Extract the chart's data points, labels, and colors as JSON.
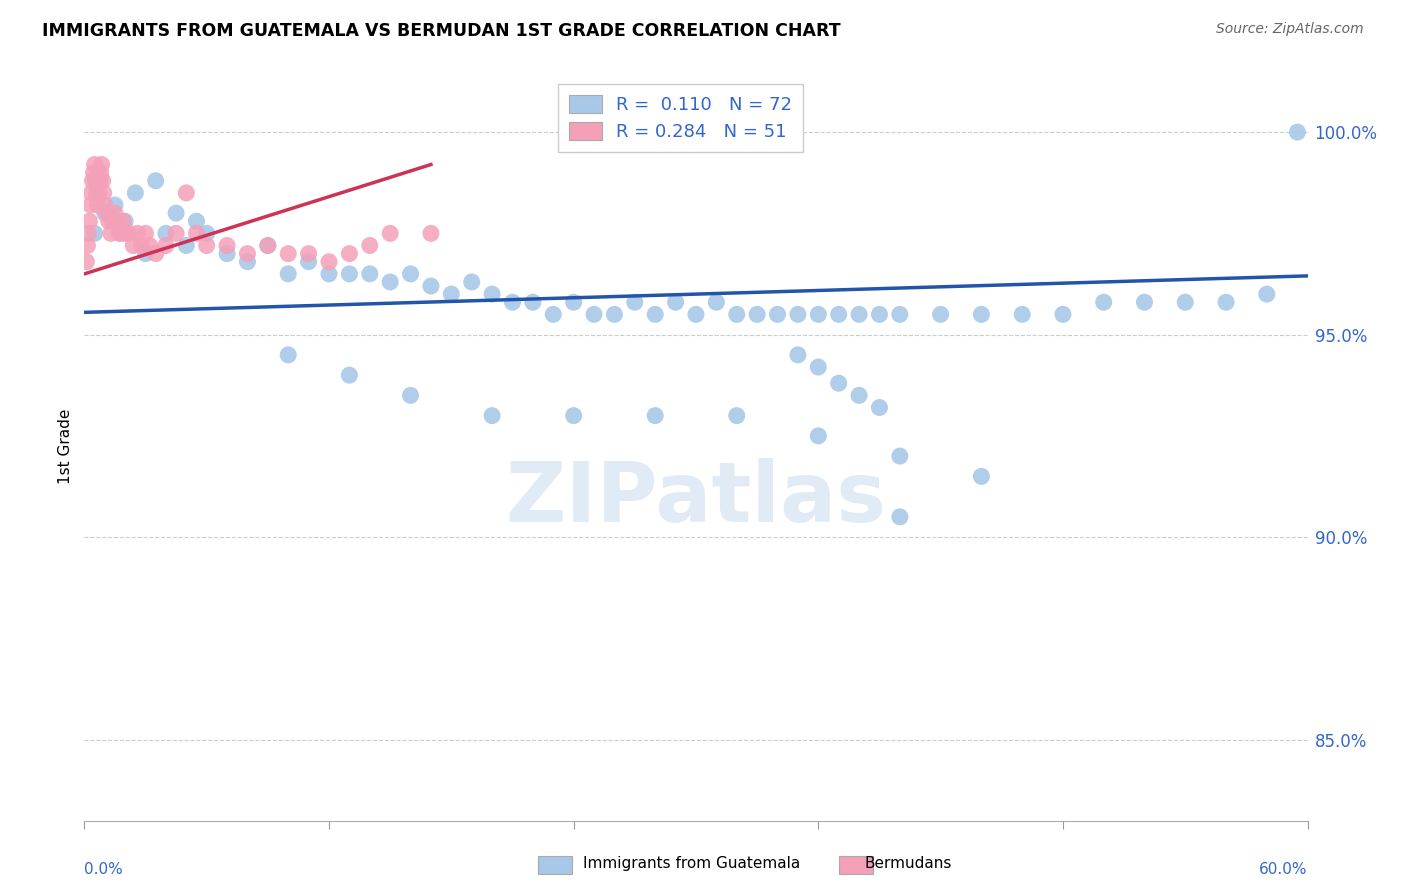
{
  "title": "IMMIGRANTS FROM GUATEMALA VS BERMUDAN 1ST GRADE CORRELATION CHART",
  "source": "Source: ZipAtlas.com",
  "ylabel": "1st Grade",
  "yticks": [
    85.0,
    90.0,
    95.0,
    100.0
  ],
  "ytick_labels": [
    "85.0%",
    "90.0%",
    "95.0%",
    "100.0%"
  ],
  "xmin": 0.0,
  "xmax": 60.0,
  "ymin": 83.0,
  "ymax": 101.5,
  "legend_blue_r": "0.110",
  "legend_blue_n": "72",
  "legend_pink_r": "0.284",
  "legend_pink_n": "51",
  "blue_color": "#a8c8e8",
  "pink_color": "#f4a0b8",
  "blue_line_color": "#2255aa",
  "pink_line_color": "#cc3355",
  "watermark_text": "ZIPatlas",
  "blue_scatter_x": [
    0.5,
    1.0,
    1.5,
    2.0,
    2.5,
    3.0,
    3.5,
    4.0,
    4.5,
    5.0,
    5.5,
    6.0,
    7.0,
    8.0,
    9.0,
    10.0,
    11.0,
    12.0,
    13.0,
    14.0,
    15.0,
    16.0,
    17.0,
    18.0,
    19.0,
    20.0,
    21.0,
    22.0,
    23.0,
    24.0,
    25.0,
    26.0,
    27.0,
    28.0,
    29.0,
    30.0,
    31.0,
    32.0,
    33.0,
    34.0,
    35.0,
    36.0,
    37.0,
    38.0,
    39.0,
    40.0,
    42.0,
    44.0,
    46.0,
    48.0,
    50.0,
    52.0,
    54.0,
    56.0,
    58.0,
    59.5,
    10.0,
    13.0,
    16.0,
    20.0,
    24.0,
    28.0,
    32.0,
    36.0,
    40.0,
    44.0,
    35.0,
    36.0,
    37.0,
    38.0,
    39.0,
    40.0
  ],
  "blue_scatter_y": [
    97.5,
    98.0,
    98.2,
    97.8,
    98.5,
    97.0,
    98.8,
    97.5,
    98.0,
    97.2,
    97.8,
    97.5,
    97.0,
    96.8,
    97.2,
    96.5,
    96.8,
    96.5,
    96.5,
    96.5,
    96.3,
    96.5,
    96.2,
    96.0,
    96.3,
    96.0,
    95.8,
    95.8,
    95.5,
    95.8,
    95.5,
    95.5,
    95.8,
    95.5,
    95.8,
    95.5,
    95.8,
    95.5,
    95.5,
    95.5,
    95.5,
    95.5,
    95.5,
    95.5,
    95.5,
    95.5,
    95.5,
    95.5,
    95.5,
    95.5,
    95.8,
    95.8,
    95.8,
    95.8,
    96.0,
    100.0,
    94.5,
    94.0,
    93.5,
    93.0,
    93.0,
    93.0,
    93.0,
    92.5,
    92.0,
    91.5,
    94.5,
    94.2,
    93.8,
    93.5,
    93.2,
    90.5
  ],
  "pink_scatter_x": [
    0.1,
    0.15,
    0.2,
    0.25,
    0.3,
    0.35,
    0.4,
    0.45,
    0.5,
    0.55,
    0.6,
    0.65,
    0.7,
    0.75,
    0.8,
    0.85,
    0.9,
    0.95,
    1.0,
    1.1,
    1.2,
    1.3,
    1.4,
    1.5,
    1.6,
    1.7,
    1.8,
    1.9,
    2.0,
    2.2,
    2.4,
    2.6,
    2.8,
    3.0,
    3.2,
    3.5,
    4.0,
    4.5,
    5.0,
    5.5,
    6.0,
    7.0,
    8.0,
    9.0,
    10.0,
    11.0,
    12.0,
    13.0,
    14.0,
    15.0,
    17.0
  ],
  "pink_scatter_y": [
    96.8,
    97.2,
    97.5,
    97.8,
    98.2,
    98.5,
    98.8,
    99.0,
    99.2,
    98.8,
    98.5,
    98.2,
    98.5,
    98.8,
    99.0,
    99.2,
    98.8,
    98.5,
    98.2,
    98.0,
    97.8,
    97.5,
    97.8,
    98.0,
    97.8,
    97.5,
    97.5,
    97.8,
    97.5,
    97.5,
    97.2,
    97.5,
    97.2,
    97.5,
    97.2,
    97.0,
    97.2,
    97.5,
    98.5,
    97.5,
    97.2,
    97.2,
    97.0,
    97.2,
    97.0,
    97.0,
    96.8,
    97.0,
    97.2,
    97.5,
    97.5
  ],
  "blue_trendline_x": [
    0.0,
    60.0
  ],
  "blue_trendline_y": [
    95.55,
    96.45
  ],
  "pink_trendline_x": [
    0.0,
    17.0
  ],
  "pink_trendline_y": [
    96.5,
    99.2
  ],
  "xtick_positions": [
    0,
    12,
    24,
    36,
    48,
    60
  ],
  "legend_label_blue": "Immigrants from Guatemala",
  "legend_label_pink": "Bermudans"
}
